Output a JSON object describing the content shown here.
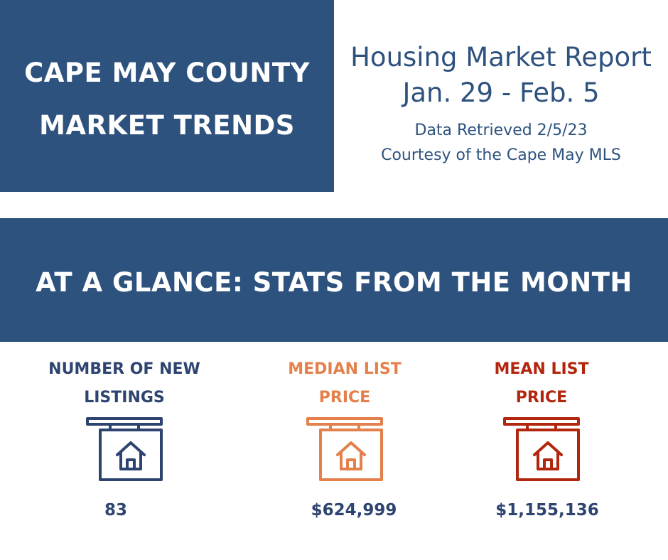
{
  "header": {
    "title_lines": [
      "CAPE MAY COUNTY",
      "MARKET TRENDS"
    ]
  },
  "report": {
    "title": "Housing Market Report",
    "date_range": "Jan. 29 - Feb. 5",
    "retrieved": "Data Retrieved 2/5/23",
    "courtesy": "Courtesy of the Cape May MLS"
  },
  "glance": {
    "title": "AT A GLANCE: STATS FROM THE MONTH"
  },
  "stats": [
    {
      "label_lines": [
        "NUMBER OF NEW",
        "LISTINGS"
      ],
      "value": "83",
      "color": "#2e4470",
      "icon": "house-sign-icon"
    },
    {
      "label_lines": [
        "MEDIAN LIST",
        "PRICE"
      ],
      "value": "$624,999",
      "color": "#e3804b",
      "icon": "house-sign-icon"
    },
    {
      "label_lines": [
        "MEAN LIST",
        "PRICE"
      ],
      "value": "$1,155,136",
      "color": "#b2260e",
      "icon": "house-sign-icon"
    }
  ],
  "colors": {
    "navy": "#2e527e",
    "value_text": "#2e4470"
  }
}
